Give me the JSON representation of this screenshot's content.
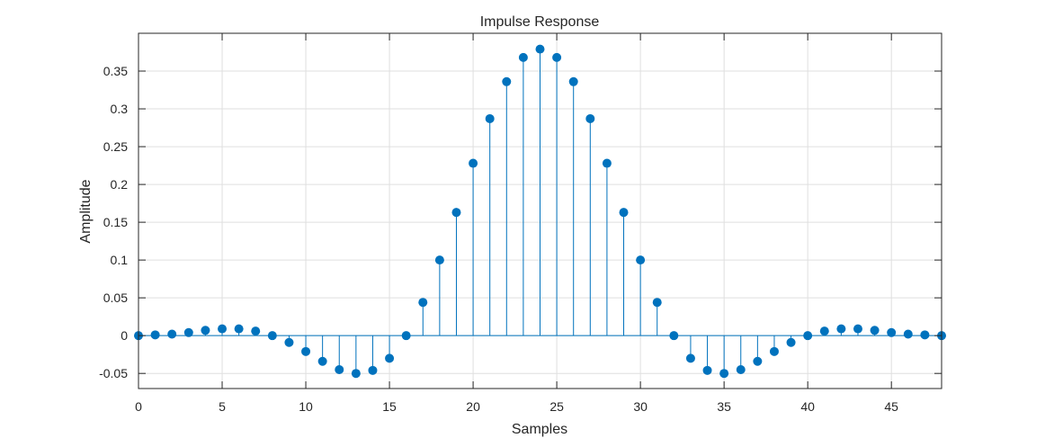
{
  "chart_data": {
    "type": "stem",
    "title": "Impulse Response",
    "xlabel": "Samples",
    "ylabel": "Amplitude",
    "xlim": [
      0,
      48
    ],
    "ylim": [
      -0.07,
      0.4
    ],
    "xticks": [
      0,
      5,
      10,
      15,
      20,
      25,
      30,
      35,
      40,
      45
    ],
    "yticks": [
      -0.05,
      0,
      0.05,
      0.1,
      0.15,
      0.2,
      0.25,
      0.3,
      0.35
    ],
    "xtick_labels": [
      "0",
      "5",
      "10",
      "15",
      "20",
      "25",
      "30",
      "35",
      "40",
      "45"
    ],
    "ytick_labels": [
      "-0.05",
      "0",
      "0.05",
      "0.1",
      "0.15",
      "0.2",
      "0.25",
      "0.3",
      "0.35"
    ],
    "grid": true,
    "color": "#0072BD",
    "x": [
      0,
      1,
      2,
      3,
      4,
      5,
      6,
      7,
      8,
      9,
      10,
      11,
      12,
      13,
      14,
      15,
      16,
      17,
      18,
      19,
      20,
      21,
      22,
      23,
      24,
      25,
      26,
      27,
      28,
      29,
      30,
      31,
      32,
      33,
      34,
      35,
      36,
      37,
      38,
      39,
      40,
      41,
      42,
      43,
      44,
      45,
      46,
      47,
      48
    ],
    "values": [
      0,
      0.001,
      0.002,
      0.004,
      0.007,
      0.009,
      0.009,
      0.006,
      0,
      -0.009,
      -0.021,
      -0.034,
      -0.045,
      -0.05,
      -0.046,
      -0.03,
      0,
      0.044,
      0.1,
      0.163,
      0.228,
      0.287,
      0.336,
      0.368,
      0.379,
      0.368,
      0.336,
      0.287,
      0.228,
      0.163,
      0.1,
      0.044,
      0,
      -0.03,
      -0.046,
      -0.05,
      -0.045,
      -0.034,
      -0.021,
      -0.009,
      0,
      0.006,
      0.009,
      0.009,
      0.007,
      0.004,
      0.002,
      0.001,
      0
    ]
  }
}
